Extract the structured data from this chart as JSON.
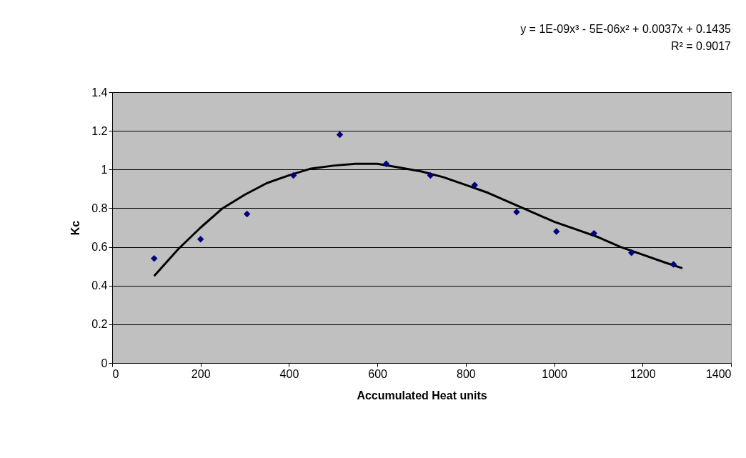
{
  "chart_data": {
    "type": "scatter",
    "xlabel": "Accumulated Heat units",
    "ylabel": "Kc",
    "annotations": [
      "y = 1E-09x³ - 5E-06x² + 0.0037x + 0.1435",
      "R² = 0.9017"
    ],
    "series": [
      {
        "color": "#000080",
        "marker": "diamond",
        "x": [
          95,
          200,
          305,
          410,
          515,
          620,
          720,
          820,
          915,
          1005,
          1090,
          1175,
          1270
        ],
        "values": [
          0.54,
          0.64,
          0.77,
          0.97,
          1.18,
          1.03,
          0.97,
          0.92,
          0.78,
          0.68,
          0.67,
          0.57,
          0.51
        ]
      },
      {
        "type": "line",
        "color": "#000000",
        "line_style": "solid",
        "x": [
          95,
          150,
          200,
          250,
          300,
          350,
          400,
          450,
          500,
          550,
          600,
          650,
          700,
          750,
          800,
          850,
          900,
          950,
          1000,
          1050,
          1100,
          1150,
          1200,
          1250,
          1290
        ],
        "values": [
          0.45,
          0.59,
          0.7,
          0.8,
          0.87,
          0.93,
          0.97,
          1.005,
          1.02,
          1.03,
          1.03,
          1.01,
          0.99,
          0.96,
          0.92,
          0.88,
          0.83,
          0.78,
          0.73,
          0.69,
          0.65,
          0.6,
          0.56,
          0.52,
          0.49
        ]
      }
    ],
    "xlim": [
      0,
      1400
    ],
    "xticks": [
      0,
      200,
      400,
      600,
      800,
      1000,
      1200,
      1400
    ],
    "ylim": [
      0,
      1.4
    ],
    "yticks": [
      0,
      0.2,
      0.4,
      0.6,
      0.8,
      1,
      1.2,
      1.4
    ],
    "grid": "y",
    "legend": false
  }
}
